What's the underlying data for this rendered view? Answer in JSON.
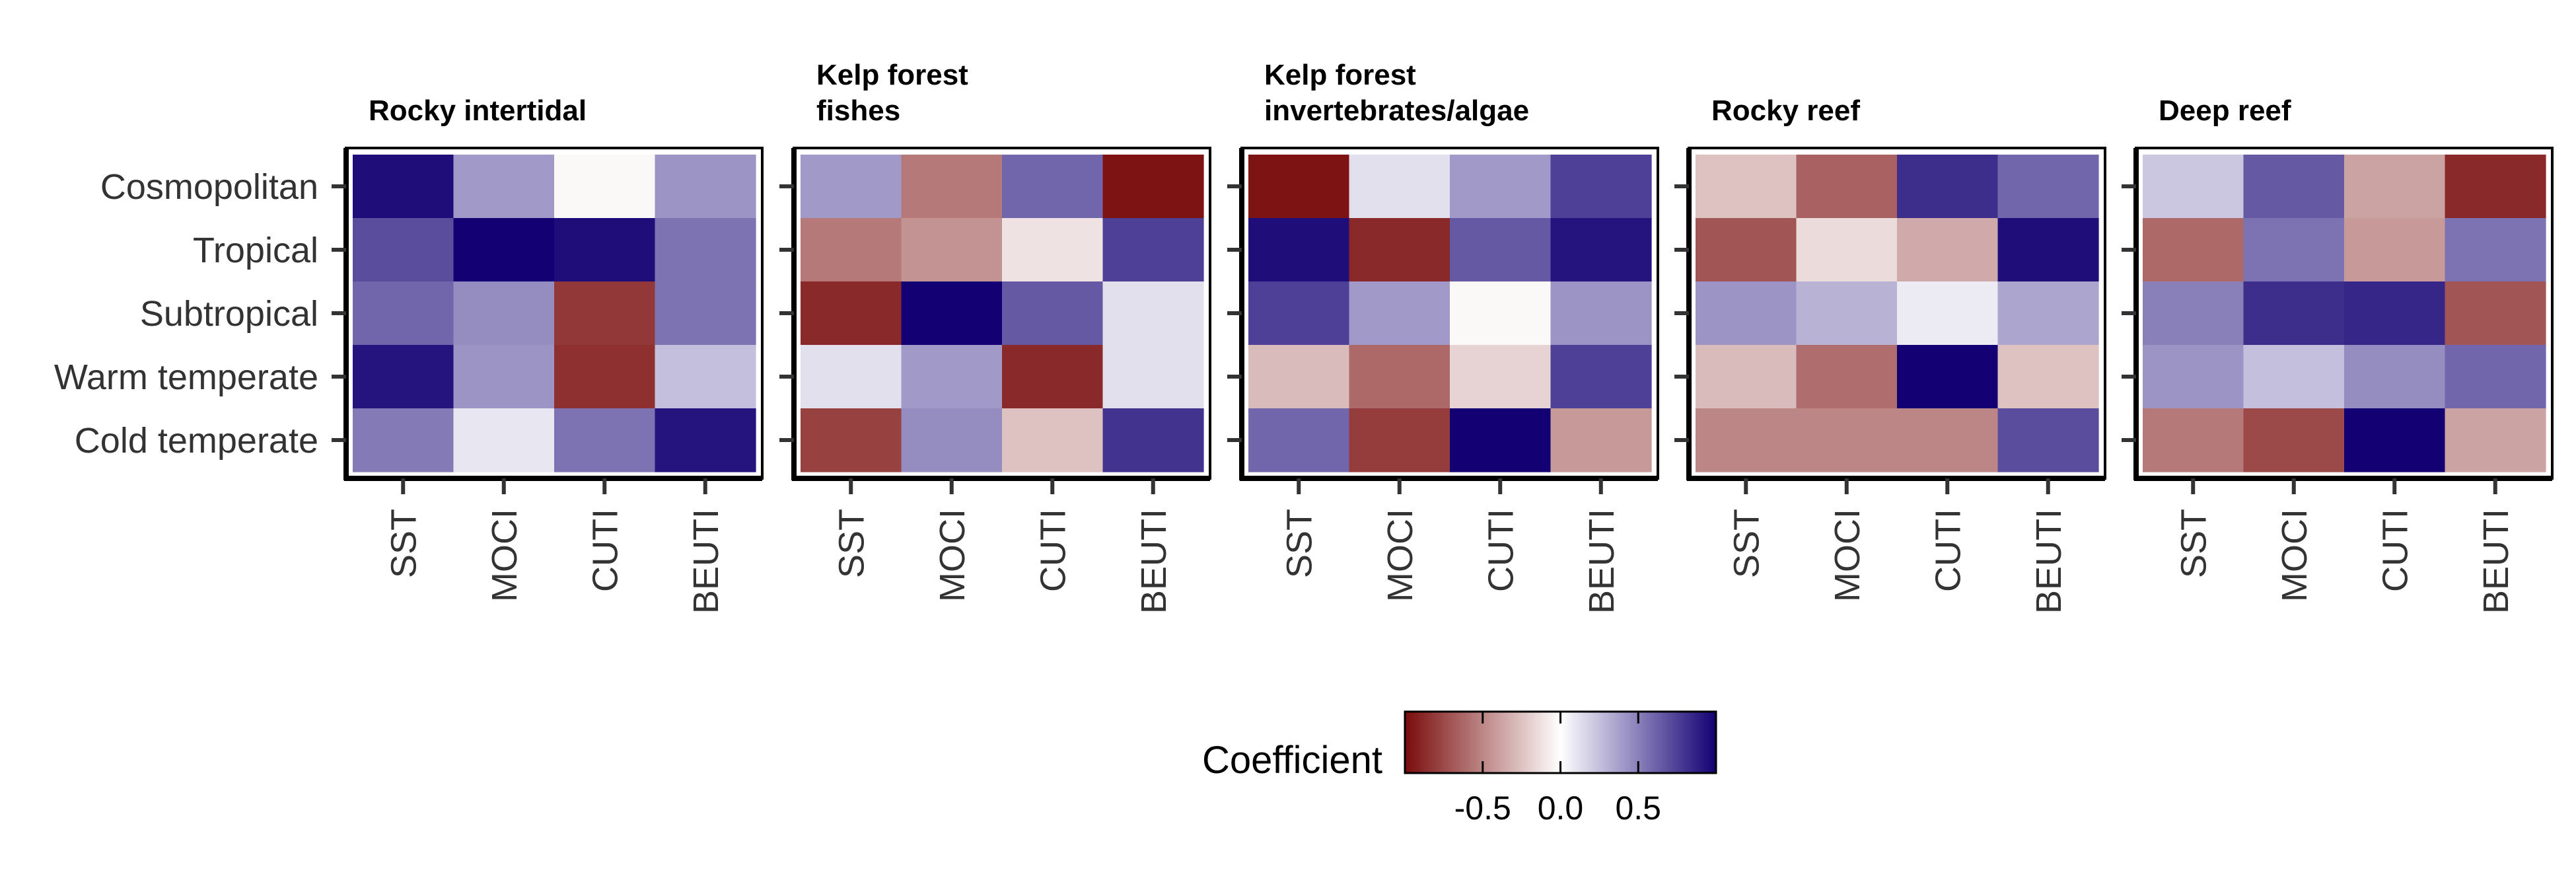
{
  "chart_data": {
    "type": "heatmap",
    "row_categories": [
      "Cosmopolitan",
      "Tropical",
      "Subtropical",
      "Warm temperate",
      "Cold temperate"
    ],
    "column_categories": [
      "SST",
      "MOCI",
      "CUTI",
      "BEUTI"
    ],
    "value_range": [
      -1,
      1
    ],
    "color_scale": {
      "negative": "#7a0c0c",
      "mid": "#ffffff",
      "positive": "#130073"
    },
    "legend": {
      "title": "Coefficient",
      "tick_values": [
        -0.5,
        0,
        0.5
      ],
      "tick_labels": [
        "-0.5",
        "0.0",
        "0.5"
      ],
      "placement": "bottom-center"
    },
    "panels": [
      {
        "title_lines": [
          "Rocky intertidal"
        ],
        "values": [
          [
            0.95,
            0.4,
            -0.03,
            0.42
          ],
          [
            0.7,
            1.0,
            0.95,
            0.55
          ],
          [
            0.6,
            0.45,
            -0.82,
            0.55
          ],
          [
            0.92,
            0.42,
            -0.85,
            0.25
          ],
          [
            0.52,
            0.1,
            0.55,
            0.92
          ]
        ]
      },
      {
        "title_lines": [
          "Kelp forest",
          "fishes"
        ],
        "values": [
          [
            0.4,
            -0.55,
            0.6,
            -0.97
          ],
          [
            -0.55,
            -0.45,
            -0.12,
            0.75
          ],
          [
            -0.88,
            1.0,
            0.65,
            0.12
          ],
          [
            0.12,
            0.4,
            -0.88,
            0.12
          ],
          [
            -0.78,
            0.45,
            -0.25,
            0.8
          ]
        ]
      },
      {
        "title_lines": [
          "Kelp forest",
          "invertebrates/algae"
        ],
        "values": [
          [
            -0.97,
            0.12,
            0.4,
            0.75
          ],
          [
            0.95,
            -0.88,
            0.65,
            0.92
          ],
          [
            0.75,
            0.4,
            -0.03,
            0.42
          ],
          [
            -0.28,
            -0.62,
            -0.18,
            0.75
          ],
          [
            0.6,
            -0.8,
            1.0,
            -0.42
          ]
        ]
      },
      {
        "title_lines": [
          "Rocky reef"
        ],
        "values": [
          [
            -0.25,
            -0.65,
            0.82,
            0.6
          ],
          [
            -0.7,
            -0.15,
            -0.35,
            0.95
          ],
          [
            0.42,
            0.3,
            0.08,
            0.35
          ],
          [
            -0.28,
            -0.6,
            1.0,
            -0.25
          ],
          [
            -0.5,
            -0.5,
            -0.5,
            0.7
          ]
        ]
      },
      {
        "title_lines": [
          "Deep reef"
        ],
        "values": [
          [
            0.22,
            0.65,
            -0.38,
            -0.88
          ],
          [
            -0.62,
            0.55,
            -0.42,
            0.55
          ],
          [
            0.5,
            0.82,
            0.85,
            -0.7
          ],
          [
            0.42,
            0.25,
            0.45,
            0.6
          ],
          [
            -0.55,
            -0.75,
            1.0,
            -0.38
          ]
        ]
      }
    ]
  }
}
